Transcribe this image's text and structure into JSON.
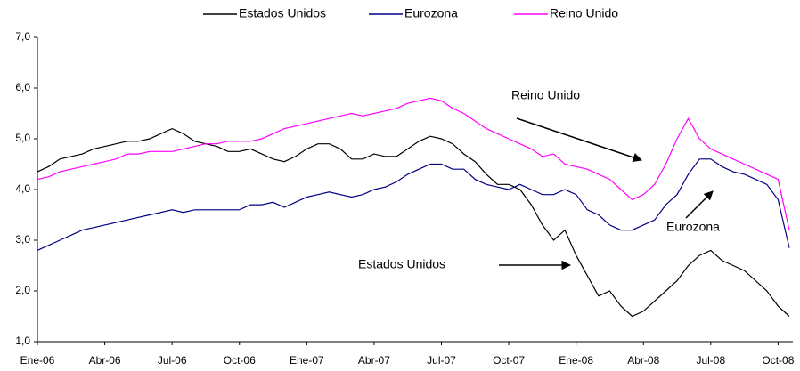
{
  "chart_data": {
    "type": "line",
    "categories": [
      "Ene-06",
      null,
      null,
      null,
      null,
      null,
      "Abr-06",
      null,
      null,
      null,
      null,
      null,
      "Jul-06",
      null,
      null,
      null,
      null,
      null,
      "Oct-06",
      null,
      null,
      null,
      null,
      null,
      "Ene-07",
      null,
      null,
      null,
      null,
      null,
      "Abr-07",
      null,
      null,
      null,
      null,
      null,
      "Jul-07",
      null,
      null,
      null,
      null,
      null,
      "Oct-07",
      null,
      null,
      null,
      null,
      null,
      "Ene-08",
      null,
      null,
      null,
      null,
      null,
      "Abr-08",
      null,
      null,
      null,
      null,
      null,
      "Jul-08",
      null,
      null,
      null,
      null,
      null,
      "Oct-08",
      null
    ],
    "series": [
      {
        "name": "Estados Unidos",
        "color": "#000000",
        "values": [
          4.35,
          4.45,
          4.6,
          4.65,
          4.7,
          4.8,
          4.85,
          4.9,
          4.95,
          4.95,
          5.0,
          5.1,
          5.2,
          5.1,
          4.95,
          4.9,
          4.85,
          4.75,
          4.75,
          4.8,
          4.7,
          4.6,
          4.55,
          4.65,
          4.8,
          4.9,
          4.9,
          4.8,
          4.6,
          4.6,
          4.7,
          4.65,
          4.65,
          4.8,
          4.95,
          5.05,
          5.0,
          4.9,
          4.7,
          4.55,
          4.3,
          4.1,
          4.1,
          4.0,
          3.7,
          3.3,
          3.0,
          3.2,
          2.7,
          2.3,
          1.9,
          2.0,
          1.7,
          1.5,
          1.6,
          1.8,
          2.0,
          2.2,
          2.5,
          2.7,
          2.8,
          2.6,
          2.5,
          2.4,
          2.2,
          2.0,
          1.7,
          1.5
        ]
      },
      {
        "name": "Eurozona",
        "color": "#000080",
        "values": [
          2.8,
          2.9,
          3.0,
          3.1,
          3.2,
          3.25,
          3.3,
          3.35,
          3.4,
          3.45,
          3.5,
          3.55,
          3.6,
          3.55,
          3.6,
          3.6,
          3.6,
          3.6,
          3.6,
          3.7,
          3.7,
          3.75,
          3.65,
          3.75,
          3.85,
          3.9,
          3.95,
          3.9,
          3.85,
          3.9,
          4.0,
          4.05,
          4.15,
          4.3,
          4.4,
          4.5,
          4.5,
          4.4,
          4.4,
          4.2,
          4.1,
          4.05,
          4.0,
          4.1,
          4.0,
          3.9,
          3.9,
          4.0,
          3.9,
          3.6,
          3.5,
          3.3,
          3.2,
          3.2,
          3.3,
          3.4,
          3.7,
          3.9,
          4.3,
          4.6,
          4.6,
          4.45,
          4.35,
          4.3,
          4.2,
          4.1,
          3.8,
          2.85
        ]
      },
      {
        "name": "Reino Unido",
        "color": "#ff00ff",
        "values": [
          4.2,
          4.25,
          4.35,
          4.4,
          4.45,
          4.5,
          4.55,
          4.6,
          4.7,
          4.7,
          4.75,
          4.75,
          4.75,
          4.8,
          4.85,
          4.9,
          4.9,
          4.95,
          4.95,
          4.95,
          5.0,
          5.1,
          5.2,
          5.25,
          5.3,
          5.35,
          5.4,
          5.45,
          5.5,
          5.45,
          5.5,
          5.55,
          5.6,
          5.7,
          5.75,
          5.8,
          5.75,
          5.6,
          5.5,
          5.35,
          5.2,
          5.1,
          5.0,
          4.9,
          4.8,
          4.65,
          4.7,
          4.5,
          4.45,
          4.4,
          4.3,
          4.2,
          4.0,
          3.8,
          3.9,
          4.1,
          4.5,
          5.0,
          5.4,
          5.0,
          4.8,
          4.7,
          4.6,
          4.5,
          4.4,
          4.3,
          4.2,
          3.2
        ]
      }
    ],
    "ylim": [
      1,
      7
    ],
    "yticks": [
      {
        "value": 1,
        "label": "1,0"
      },
      {
        "value": 2,
        "label": "2,0"
      },
      {
        "value": 3,
        "label": "3,0"
      },
      {
        "value": 4,
        "label": "4,0"
      },
      {
        "value": 5,
        "label": "5,0"
      },
      {
        "value": 6,
        "label": "6,0"
      },
      {
        "value": 7,
        "label": "7,0"
      }
    ],
    "grid": false,
    "legend": "top",
    "annotations": [
      "Reino Unido",
      "Eurozona",
      "Estados Unidos"
    ]
  }
}
